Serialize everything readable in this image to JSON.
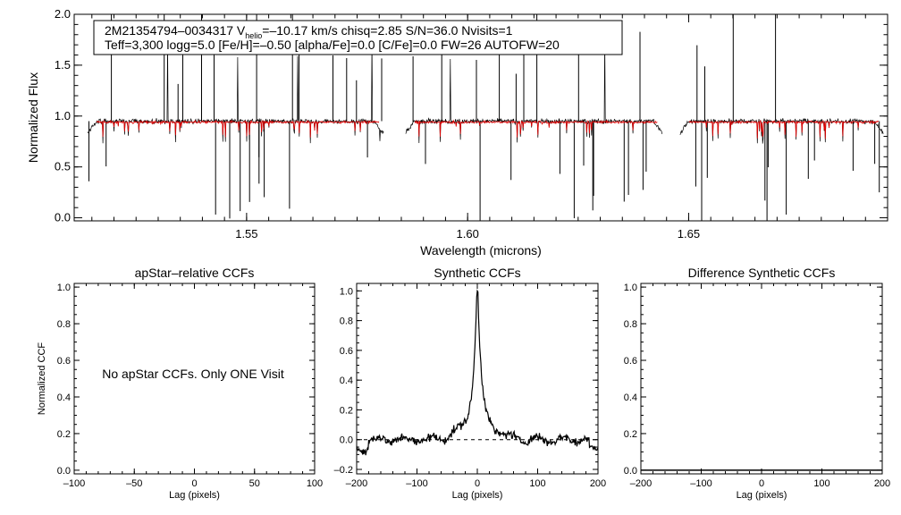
{
  "chart_data": [
    {
      "type": "line",
      "id": "spectrum",
      "xlabel": "Wavelength (microns)",
      "ylabel": "Normalized Flux",
      "xlim": [
        1.511,
        1.695
      ],
      "ylim": [
        -0.03,
        2.0
      ],
      "xticks": [
        1.55,
        1.6,
        1.65
      ],
      "xtick_labels": [
        "1.55",
        "1.60",
        "1.65"
      ],
      "yticks": [
        0.0,
        0.5,
        1.0,
        1.5,
        2.0
      ],
      "ytick_labels": [
        "0.0",
        "0.5",
        "1.0",
        "1.5",
        "2.0"
      ],
      "chips": [
        [
          1.514,
          1.581
        ],
        [
          1.586,
          1.644
        ],
        [
          1.648,
          1.694
        ]
      ],
      "series": [
        {
          "name": "observed",
          "color": "#000000",
          "continuum": 0.95
        },
        {
          "name": "model",
          "color": "#e00000",
          "continuum": 0.94
        }
      ],
      "annotation": {
        "line1_a": "2M21354794–0034317  V",
        "line1_sub": "helio",
        "line1_b": "=–10.17 km/s  chisq=2.85  S/N=36.0  Nvisits=1",
        "line2": "Teff=3,300 logg=5.0 [Fe/H]=–0.50 [alpha/Fe]=0.0 [C/Fe]=0.0 FW=26 AUTOFW=20"
      }
    },
    {
      "type": "line",
      "id": "apstar-ccf",
      "title": "apStar–relative CCFs",
      "xlabel": "Lag (pixels)",
      "ylabel": "Normalized CCF",
      "xlim": [
        -100,
        100
      ],
      "ylim": [
        -0.02,
        1.02
      ],
      "xticks": [
        -100,
        -50,
        0,
        50,
        100
      ],
      "xtick_labels": [
        "–100",
        "–50",
        "0",
        "50",
        "100"
      ],
      "yticks": [
        0.0,
        0.2,
        0.4,
        0.6,
        0.8,
        1.0
      ],
      "ytick_labels": [
        "0.0",
        "0.2",
        "0.4",
        "0.6",
        "0.8",
        "1.0"
      ],
      "message": "No apStar CCFs.  Only ONE Visit"
    },
    {
      "type": "line",
      "id": "synthetic-ccf",
      "title": "Synthetic CCFs",
      "xlabel": "Lag (pixels)",
      "xlim": [
        -200,
        200
      ],
      "ylim": [
        -0.23,
        1.05
      ],
      "xticks": [
        -200,
        -100,
        0,
        100,
        200
      ],
      "xtick_labels": [
        "–200",
        "–100",
        "0",
        "100",
        "200"
      ],
      "yticks": [
        -0.2,
        0.0,
        0.2,
        0.4,
        0.6,
        0.8,
        1.0
      ],
      "ytick_labels": [
        "–0.2",
        "0.0",
        "0.2",
        "0.4",
        "0.6",
        "0.8",
        "1.0"
      ],
      "peak": {
        "lag": 0,
        "value": 1.0
      },
      "baseline": 0.0
    },
    {
      "type": "line",
      "id": "difference-ccf",
      "title": "Difference Synthetic CCFs",
      "xlabel": "Lag (pixels)",
      "xlim": [
        -200,
        200
      ],
      "ylim": [
        -0.02,
        1.02
      ],
      "xticks": [
        -200,
        -100,
        0,
        100,
        200
      ],
      "xtick_labels": [
        "–200",
        "–100",
        "0",
        "100",
        "200"
      ],
      "yticks": [
        0.0,
        0.2,
        0.4,
        0.6,
        0.8,
        1.0
      ],
      "ytick_labels": [
        "0.0",
        "0.2",
        "0.4",
        "0.6",
        "0.8",
        "1.0"
      ],
      "values_constant": 0.0
    }
  ]
}
